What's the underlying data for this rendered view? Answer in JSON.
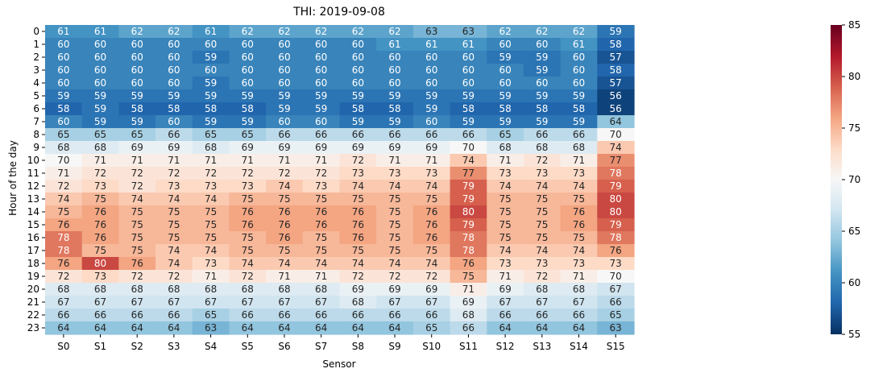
{
  "chart_data": {
    "type": "heatmap",
    "title": "THI: 2019-09-08",
    "xlabel": "Sensor",
    "ylabel": "Hour of the day",
    "x_categories": [
      "S0",
      "S1",
      "S2",
      "S3",
      "S4",
      "S5",
      "S6",
      "S7",
      "S8",
      "S9",
      "S10",
      "S11",
      "S12",
      "S13",
      "S14",
      "S15"
    ],
    "y_categories": [
      "0",
      "1",
      "2",
      "3",
      "4",
      "5",
      "6",
      "7",
      "8",
      "9",
      "10",
      "11",
      "12",
      "13",
      "14",
      "15",
      "16",
      "17",
      "18",
      "19",
      "20",
      "21",
      "22",
      "23"
    ],
    "values": [
      [
        61,
        61,
        62,
        62,
        61,
        62,
        62,
        62,
        62,
        62,
        63,
        63,
        62,
        62,
        62,
        59
      ],
      [
        60,
        60,
        60,
        60,
        60,
        60,
        60,
        60,
        60,
        61,
        61,
        61,
        60,
        60,
        61,
        58
      ],
      [
        60,
        60,
        60,
        60,
        59,
        60,
        60,
        60,
        60,
        60,
        60,
        60,
        59,
        59,
        60,
        57
      ],
      [
        60,
        60,
        60,
        60,
        60,
        60,
        60,
        60,
        60,
        60,
        60,
        60,
        60,
        59,
        60,
        58
      ],
      [
        60,
        60,
        60,
        60,
        59,
        60,
        60,
        60,
        60,
        60,
        60,
        60,
        60,
        60,
        60,
        57
      ],
      [
        59,
        59,
        59,
        59,
        59,
        59,
        59,
        59,
        59,
        59,
        59,
        59,
        59,
        59,
        59,
        56
      ],
      [
        58,
        59,
        58,
        58,
        58,
        58,
        59,
        59,
        58,
        58,
        59,
        58,
        58,
        58,
        58,
        56
      ],
      [
        60,
        59,
        59,
        60,
        59,
        59,
        60,
        60,
        59,
        59,
        60,
        59,
        59,
        59,
        59,
        64
      ],
      [
        65,
        65,
        65,
        66,
        65,
        65,
        66,
        66,
        66,
        66,
        66,
        66,
        65,
        66,
        66,
        70
      ],
      [
        68,
        68,
        69,
        69,
        68,
        69,
        69,
        69,
        69,
        69,
        69,
        70,
        68,
        68,
        68,
        74
      ],
      [
        70,
        71,
        71,
        71,
        71,
        71,
        71,
        71,
        72,
        71,
        71,
        74,
        71,
        72,
        71,
        77
      ],
      [
        71,
        72,
        72,
        72,
        72,
        72,
        72,
        72,
        73,
        73,
        73,
        77,
        73,
        73,
        73,
        78
      ],
      [
        72,
        73,
        72,
        73,
        73,
        73,
        74,
        73,
        74,
        74,
        74,
        79,
        74,
        74,
        74,
        79
      ],
      [
        74,
        75,
        74,
        74,
        74,
        75,
        75,
        75,
        75,
        75,
        75,
        79,
        75,
        75,
        75,
        80
      ],
      [
        75,
        76,
        75,
        75,
        75,
        76,
        76,
        76,
        76,
        75,
        76,
        80,
        75,
        75,
        76,
        80
      ],
      [
        76,
        76,
        75,
        75,
        75,
        76,
        76,
        76,
        76,
        75,
        76,
        79,
        75,
        75,
        76,
        79
      ],
      [
        78,
        76,
        75,
        75,
        75,
        75,
        76,
        75,
        76,
        75,
        76,
        78,
        75,
        75,
        75,
        78
      ],
      [
        78,
        75,
        75,
        74,
        74,
        75,
        75,
        75,
        75,
        75,
        75,
        78,
        74,
        74,
        74,
        76
      ],
      [
        76,
        80,
        76,
        74,
        73,
        74,
        74,
        74,
        74,
        74,
        74,
        76,
        73,
        73,
        73,
        73
      ],
      [
        72,
        73,
        72,
        72,
        71,
        72,
        71,
        71,
        72,
        72,
        72,
        75,
        71,
        72,
        71,
        70
      ],
      [
        68,
        68,
        68,
        68,
        68,
        68,
        68,
        68,
        69,
        69,
        69,
        71,
        69,
        68,
        68,
        67
      ],
      [
        67,
        67,
        67,
        67,
        67,
        67,
        67,
        67,
        68,
        67,
        67,
        69,
        67,
        67,
        67,
        66
      ],
      [
        66,
        66,
        66,
        66,
        65,
        66,
        66,
        66,
        66,
        66,
        66,
        68,
        66,
        66,
        66,
        65
      ],
      [
        64,
        64,
        64,
        64,
        63,
        64,
        64,
        64,
        64,
        64,
        65,
        66,
        64,
        64,
        64,
        63
      ]
    ],
    "colorbar": {
      "min": 55,
      "max": 85,
      "ticks": [
        "55",
        "60",
        "65",
        "70",
        "75",
        "80",
        "85"
      ],
      "colormap": "RdBu_r"
    }
  }
}
